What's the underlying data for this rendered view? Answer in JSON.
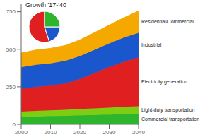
{
  "chart_data": [
    {
      "type": "area",
      "stacked": true,
      "grid": false,
      "x": [
        2000,
        2005,
        2010,
        2015,
        2020,
        2025,
        2030,
        2035,
        2040
      ],
      "xlim": [
        2000,
        2040
      ],
      "xticks": [
        2000,
        2010,
        2020,
        2030,
        2040
      ],
      "ylim": [
        0,
        800
      ],
      "yticks": [
        0,
        250,
        500,
        750
      ],
      "series": [
        {
          "name": "Commercial transportation",
          "color": "#2db52d",
          "values": [
            50,
            52,
            55,
            57,
            60,
            62,
            65,
            68,
            70
          ]
        },
        {
          "name": "Light-duty transportation",
          "color": "#7dce13",
          "values": [
            35,
            37,
            38,
            40,
            42,
            44,
            46,
            48,
            50
          ]
        },
        {
          "name": "Electricity generation",
          "color": "#e02020",
          "values": [
            150,
            160,
            165,
            175,
            200,
            235,
            270,
            300,
            325
          ]
        },
        {
          "name": "Industrial",
          "color": "#1a56cc",
          "values": [
            145,
            148,
            148,
            150,
            152,
            155,
            158,
            162,
            165
          ]
        },
        {
          "name": "Residential/Commercial",
          "color": "#f5a800",
          "values": [
            95,
            98,
            100,
            103,
            108,
            115,
            122,
            132,
            145
          ]
        }
      ]
    },
    {
      "type": "pie",
      "title": "Growth '17-'40",
      "values": [
        0.55,
        0.2,
        0.25
      ],
      "colors": [
        "#e02020",
        "#1a56cc",
        "#2db52d"
      ]
    }
  ]
}
